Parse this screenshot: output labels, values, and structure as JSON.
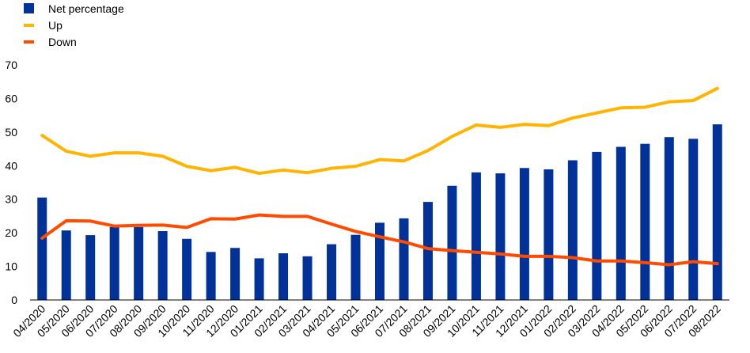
{
  "chart_data": {
    "type": "bar",
    "categories": [
      "04/2020",
      "05/2020",
      "06/2020",
      "07/2020",
      "08/2020",
      "09/2020",
      "10/2020",
      "11/2020",
      "12/2020",
      "01/2021",
      "02/2021",
      "03/2021",
      "04/2021",
      "05/2021",
      "06/2021",
      "07/2021",
      "08/2021",
      "09/2021",
      "10/2021",
      "11/2021",
      "12/2021",
      "01/2022",
      "02/2022",
      "03/2022",
      "04/2022",
      "05/2022",
      "06/2022",
      "07/2022",
      "08/2022"
    ],
    "series": [
      {
        "name": "Net percentage",
        "type": "bar",
        "color": "#003299",
        "values": [
          30.5,
          20.7,
          19.3,
          21.7,
          21.7,
          20.5,
          18.2,
          14.3,
          15.5,
          12.4,
          13.9,
          13.0,
          16.6,
          19.4,
          23.0,
          24.3,
          29.2,
          34.0,
          38.0,
          37.7,
          39.3,
          38.9,
          41.6,
          44.1,
          45.6,
          46.5,
          48.5,
          48.0,
          52.3
        ]
      },
      {
        "name": "Up",
        "type": "line",
        "color": "#FFB400",
        "values": [
          49.0,
          44.3,
          42.8,
          43.8,
          43.8,
          42.8,
          39.8,
          38.5,
          39.5,
          37.7,
          38.7,
          37.9,
          39.2,
          39.8,
          41.8,
          41.4,
          44.5,
          48.7,
          52.1,
          51.4,
          52.3,
          51.9,
          54.2,
          55.7,
          57.2,
          57.4,
          59.0,
          59.4,
          63.0
        ]
      },
      {
        "name": "Down",
        "type": "line",
        "color": "#FF4B00",
        "values": [
          18.4,
          23.6,
          23.5,
          22.0,
          22.2,
          22.3,
          21.6,
          24.2,
          24.1,
          25.3,
          24.9,
          24.9,
          22.6,
          20.4,
          18.8,
          17.3,
          15.3,
          14.7,
          14.2,
          13.7,
          13.0,
          13.0,
          12.6,
          11.6,
          11.6,
          11.1,
          10.5,
          11.4,
          10.8
        ]
      }
    ],
    "ylim": [
      0,
      70
    ],
    "yticks": [
      0,
      10,
      20,
      30,
      40,
      50,
      60,
      70
    ],
    "grid": false,
    "legend_position": "top-left",
    "title": "",
    "xlabel": "",
    "ylabel": ""
  }
}
